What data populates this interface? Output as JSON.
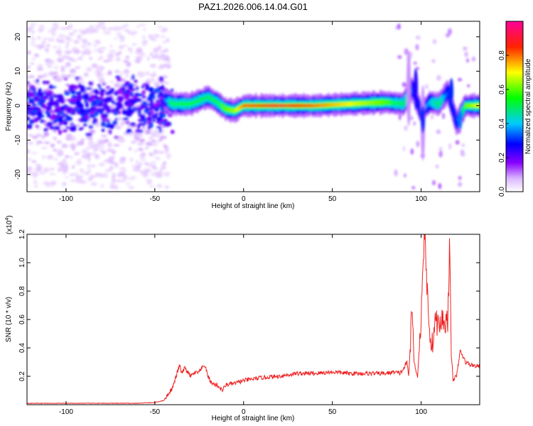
{
  "title": "PAZ1.2026.006.14.04.G01",
  "chart_data": [
    {
      "type": "heatmap",
      "xlabel": "Height of straight line (km)",
      "ylabel": "Frequency (Hz)",
      "xlim": [
        -122,
        133
      ],
      "ylim": [
        -25,
        24.5
      ],
      "x_ticks": [
        -100,
        -50,
        0,
        50,
        100
      ],
      "y_ticks": [
        -20,
        -10,
        0,
        10,
        20
      ],
      "colorbar": {
        "label": "Normalized spectral amplitude",
        "range": [
          0,
          1
        ],
        "ticks": [
          0.0,
          0.2,
          0.4,
          0.6,
          0.8
        ],
        "colormap": "rainbow (white-violet-blue-cyan-green-yellow-red-magenta)"
      },
      "ridge": {
        "description_x": [
          -122,
          -100,
          -80,
          -60,
          -45,
          -40,
          -30,
          -20,
          -15,
          -10,
          -5,
          0,
          20,
          40,
          60,
          80,
          90,
          95,
          100,
          105,
          110,
          115,
          120,
          125,
          133
        ],
        "frequency_y": [
          0,
          -1,
          0,
          1,
          2,
          0.5,
          0.5,
          2.5,
          1,
          -1,
          -1.5,
          0,
          0,
          0,
          0.5,
          1,
          0.5,
          5,
          -2,
          1,
          0.5,
          4,
          -5,
          0,
          0
        ],
        "amplitude": [
          0.25,
          0.25,
          0.25,
          0.25,
          0.3,
          0.55,
          0.55,
          0.5,
          0.55,
          0.6,
          0.65,
          0.8,
          0.9,
          0.8,
          0.7,
          0.6,
          0.5,
          0.3,
          0.3,
          0.4,
          0.5,
          0.3,
          0.3,
          0.6,
          0.7
        ]
      }
    },
    {
      "type": "line",
      "xlabel": "Height of straight line (km)",
      "ylabel": "SNR (10 * v/v)",
      "y_exponent_label": "(x10",
      "y_exponent_power": "4",
      "y_exponent_close": ")",
      "xlim": [
        -122,
        133
      ],
      "ylim": [
        0,
        1.2
      ],
      "x_ticks": [
        -100,
        -50,
        0,
        50,
        100
      ],
      "y_ticks": [
        0.2,
        0.4,
        0.6,
        0.8,
        1.0,
        1.2
      ],
      "y_tick_labels": [
        "0.2",
        "0.4",
        "0.6",
        "0.8",
        "1.0",
        "1.2"
      ],
      "series": [
        {
          "color": "#ee2222",
          "x": [
            -122,
            -100,
            -80,
            -60,
            -50,
            -45,
            -40,
            -38,
            -36,
            -35,
            -33,
            -30,
            -28,
            -25,
            -22,
            -20,
            -18,
            -15,
            -12,
            -10,
            -5,
            0,
            10,
            20,
            30,
            40,
            50,
            60,
            70,
            80,
            85,
            88,
            90,
            92,
            93,
            95,
            96,
            98,
            100,
            101,
            102,
            103,
            104,
            105,
            106,
            108,
            110,
            112,
            114,
            115,
            116,
            117,
            118,
            120,
            122,
            125,
            128,
            133
          ],
          "y": [
            0.01,
            0.01,
            0.01,
            0.01,
            0.015,
            0.03,
            0.12,
            0.2,
            0.28,
            0.22,
            0.26,
            0.2,
            0.22,
            0.23,
            0.28,
            0.2,
            0.15,
            0.14,
            0.1,
            0.14,
            0.15,
            0.17,
            0.19,
            0.2,
            0.22,
            0.22,
            0.23,
            0.22,
            0.22,
            0.22,
            0.23,
            0.22,
            0.25,
            0.3,
            0.2,
            0.7,
            0.3,
            0.2,
            0.6,
            1.0,
            1.2,
            0.9,
            0.7,
            0.5,
            0.4,
            0.6,
            0.55,
            0.6,
            0.58,
            0.6,
            1.1,
            0.35,
            0.18,
            0.2,
            0.38,
            0.3,
            0.28,
            0.27
          ]
        }
      ]
    }
  ]
}
